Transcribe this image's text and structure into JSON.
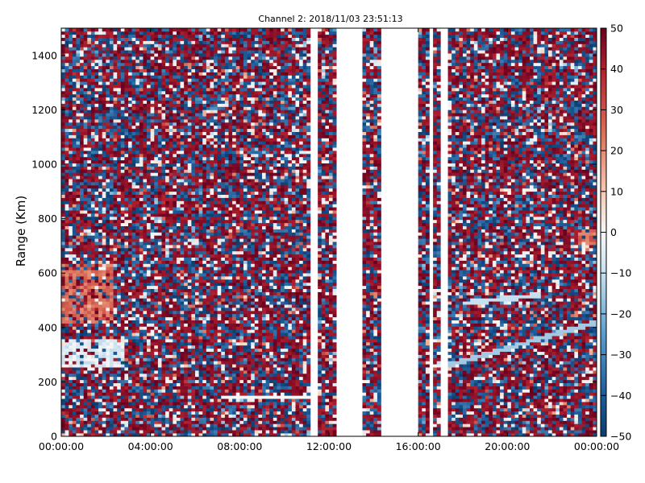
{
  "chart_data": {
    "type": "heatmap",
    "title": "Channel 2: 2018/11/03 23:51:13",
    "xlabel": "",
    "ylabel": "Range (Km)",
    "x_range_hours": [
      0,
      24
    ],
    "x_ticks": [
      "00:00:00",
      "04:00:00",
      "08:00:00",
      "12:00:00",
      "16:00:00",
      "20:00:00",
      "00:00:00"
    ],
    "ylim": [
      0,
      1500
    ],
    "y_ticks": [
      0,
      200,
      400,
      600,
      800,
      1000,
      1200,
      1400
    ],
    "colorbar": {
      "range": [
        -50,
        50
      ],
      "ticks": [
        50,
        40,
        30,
        20,
        10,
        0,
        -10,
        -20,
        -30,
        -40,
        -50
      ],
      "colormap": "RdBu_r",
      "low_color": "#0b3d6e",
      "mid_color": "#f7f7f7",
      "high_color": "#67001f"
    },
    "data_gaps_hours": [
      [
        11.15,
        11.5
      ],
      [
        12.3,
        13.5
      ],
      [
        14.3,
        15.95
      ],
      [
        16.5,
        16.75
      ],
      [
        17.05,
        17.35
      ]
    ],
    "features": [
      {
        "description": "warm arc",
        "hours": [
          0,
          2.3
        ],
        "range_km": [
          420,
          640
        ],
        "value": 25
      },
      {
        "description": "cold band",
        "hours": [
          0,
          2.8
        ],
        "range_km": [
          250,
          360
        ],
        "value": -5
      },
      {
        "description": "horizontal trace",
        "hours": [
          7.2,
          11.1
        ],
        "range_km": [
          145,
          145
        ],
        "value": 0
      },
      {
        "description": "rising trace",
        "hours": [
          17.3,
          24
        ],
        "range_km": [
          260,
          420
        ],
        "value": -15
      },
      {
        "description": "upper trace",
        "hours": [
          18.0,
          21.5
        ],
        "range_km": [
          490,
          520
        ],
        "value": -10
      },
      {
        "description": "warm patch",
        "hours": [
          23.1,
          24
        ],
        "range_km": [
          700,
          760
        ],
        "value": 25
      }
    ]
  }
}
